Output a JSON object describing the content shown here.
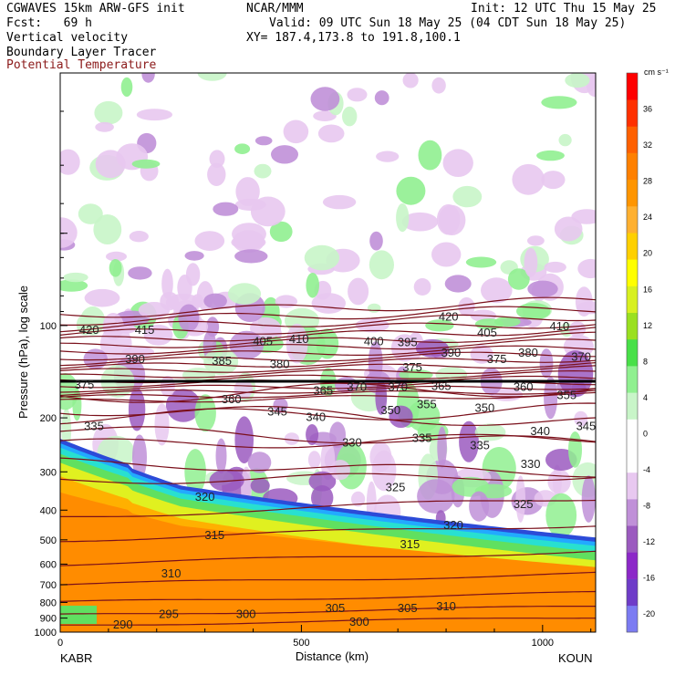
{
  "header": {
    "model": "CGWAVES 15km ARW-GFS init",
    "forecast": "Fcst:   69 h",
    "center": "NCAR/MMM",
    "init": "Init: 12 UTC Thu 15 May 25",
    "valid": "Valid: 09 UTC Sun 18 May 25 (04 CDT Sun 18 May 25)",
    "field1": "Vertical velocity",
    "field2": "Boundary Layer Tracer",
    "field3": "Potential Temperature",
    "xy": "XY= 187.4,173.8 to 191.8,100.1"
  },
  "colors": {
    "theta": "#7a0f1a",
    "field3_text": "#8b1a1a"
  },
  "chart_data": {
    "type": "heatmap",
    "xlabel": "Distance (km)",
    "ylabel": "Pressure (hPa), log scale",
    "xlim": [
      0,
      1110
    ],
    "ylim": [
      1000,
      15
    ],
    "y_scale": "log",
    "x_ticks": [
      "0",
      "500",
      "1000"
    ],
    "y_ticks": [
      "100",
      "200",
      "300",
      "400",
      "500",
      "600",
      "700",
      "800",
      "900",
      "1000"
    ],
    "left_endpoint": "KABR",
    "right_endpoint": "KOUN",
    "colorbar": {
      "unit": "cm s⁻¹",
      "ticks": [
        "36",
        "32",
        "28",
        "24",
        "20",
        "16",
        "12",
        "8",
        "4",
        "0",
        "-4",
        "-8",
        "-12",
        "-16",
        "-20"
      ],
      "colors": [
        "#7b7bf2",
        "#6e3cc8",
        "#8c28c8",
        "#9b5abf",
        "#c090d8",
        "#e8c8f0",
        "#ffffff",
        "#ffffff",
        "#c8f5c8",
        "#90f090",
        "#48e048",
        "#9ae020",
        "#d8f020",
        "#ffff00",
        "#ffd000",
        "#ffb030",
        "#ff9500",
        "#ff8000",
        "#ff6000",
        "#ff3000",
        "#ff0000"
      ]
    },
    "theta_labels": [
      {
        "v": "420",
        "x": 60,
        "p": 103
      },
      {
        "v": "415",
        "x": 175,
        "p": 103
      },
      {
        "v": "405",
        "x": 420,
        "p": 112
      },
      {
        "v": "410",
        "x": 495,
        "p": 110
      },
      {
        "v": "400",
        "x": 650,
        "p": 112
      },
      {
        "v": "395",
        "x": 720,
        "p": 113
      },
      {
        "v": "420",
        "x": 805,
        "p": 93
      },
      {
        "v": "405",
        "x": 885,
        "p": 105
      },
      {
        "v": "410",
        "x": 1035,
        "p": 100
      },
      {
        "v": "390",
        "x": 155,
        "p": 128
      },
      {
        "v": "385",
        "x": 335,
        "p": 130
      },
      {
        "v": "380",
        "x": 455,
        "p": 133
      },
      {
        "v": "390",
        "x": 810,
        "p": 122
      },
      {
        "v": "375",
        "x": 905,
        "p": 128
      },
      {
        "v": "380",
        "x": 970,
        "p": 122
      },
      {
        "v": "370",
        "x": 1080,
        "p": 126
      },
      {
        "v": "375",
        "x": 730,
        "p": 136
      },
      {
        "v": "375",
        "x": 50,
        "p": 155
      },
      {
        "v": "360",
        "x": 355,
        "p": 173
      },
      {
        "v": "365",
        "x": 545,
        "p": 162
      },
      {
        "v": "370",
        "x": 615,
        "p": 158
      },
      {
        "v": "370",
        "x": 700,
        "p": 158
      },
      {
        "v": "365",
        "x": 790,
        "p": 157
      },
      {
        "v": "360",
        "x": 960,
        "p": 158
      },
      {
        "v": "355",
        "x": 1050,
        "p": 168
      },
      {
        "v": "345",
        "x": 450,
        "p": 190
      },
      {
        "v": "340",
        "x": 530,
        "p": 198
      },
      {
        "v": "350",
        "x": 685,
        "p": 188
      },
      {
        "v": "355",
        "x": 760,
        "p": 180
      },
      {
        "v": "350",
        "x": 880,
        "p": 185
      },
      {
        "v": "335",
        "x": 70,
        "p": 212
      },
      {
        "v": "330",
        "x": 605,
        "p": 240
      },
      {
        "v": "335",
        "x": 750,
        "p": 232
      },
      {
        "v": "335",
        "x": 870,
        "p": 245
      },
      {
        "v": "340",
        "x": 995,
        "p": 220
      },
      {
        "v": "345",
        "x": 1090,
        "p": 212
      },
      {
        "v": "330",
        "x": 975,
        "p": 282
      },
      {
        "v": "325",
        "x": 695,
        "p": 335
      },
      {
        "v": "325",
        "x": 960,
        "p": 380
      },
      {
        "v": "320",
        "x": 300,
        "p": 360
      },
      {
        "v": "320",
        "x": 815,
        "p": 445
      },
      {
        "v": "315",
        "x": 320,
        "p": 480
      },
      {
        "v": "315",
        "x": 725,
        "p": 515
      },
      {
        "v": "310",
        "x": 230,
        "p": 640
      },
      {
        "v": "305",
        "x": 570,
        "p": 830
      },
      {
        "v": "305",
        "x": 720,
        "p": 830
      },
      {
        "v": "310",
        "x": 800,
        "p": 820
      },
      {
        "v": "295",
        "x": 225,
        "p": 870
      },
      {
        "v": "300",
        "x": 385,
        "p": 870
      },
      {
        "v": "300",
        "x": 620,
        "p": 920
      },
      {
        "v": "290",
        "x": 130,
        "p": 940
      }
    ]
  }
}
